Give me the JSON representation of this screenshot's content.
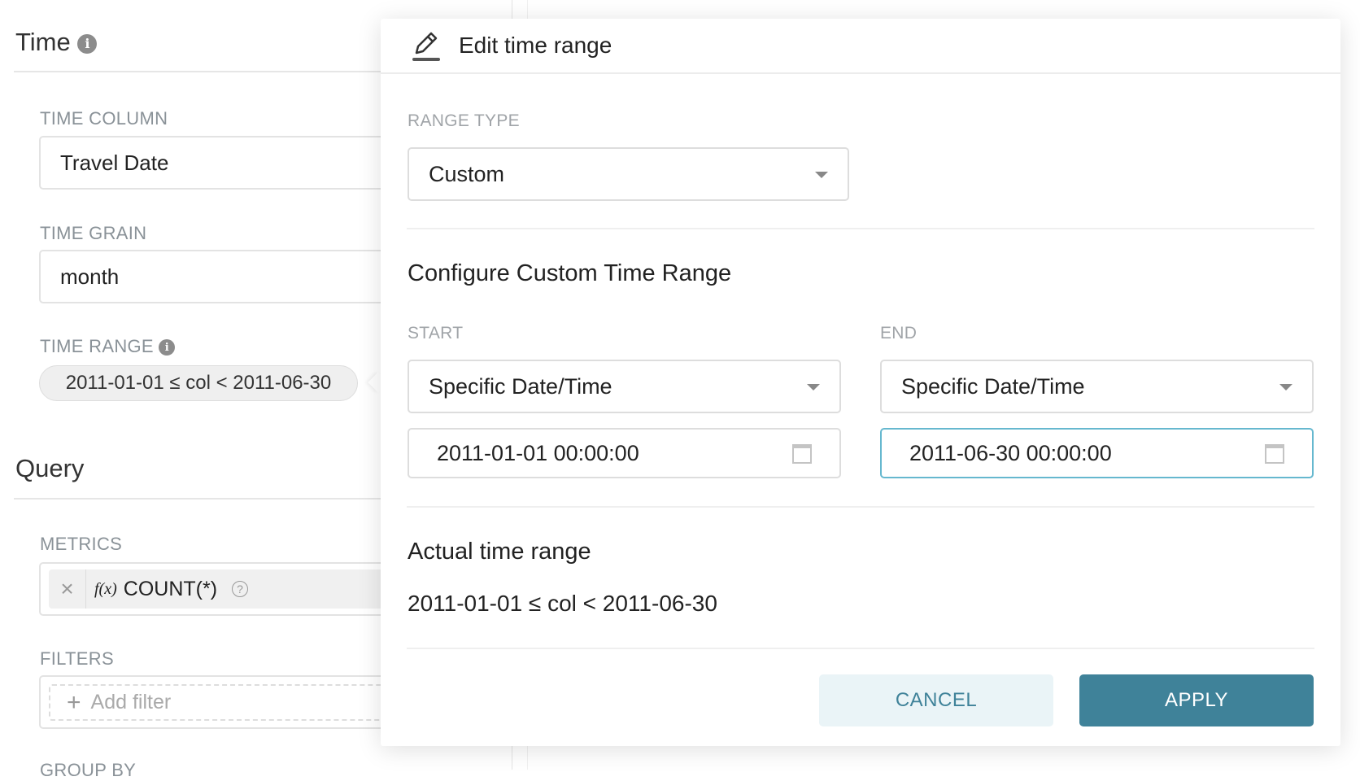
{
  "left_panel": {
    "time_section": {
      "title": "Time",
      "info_icon": "info-icon"
    },
    "time_column": {
      "label": "TIME COLUMN",
      "value": "Travel Date"
    },
    "time_grain": {
      "label": "TIME GRAIN",
      "value": "month"
    },
    "time_range": {
      "label": "TIME RANGE",
      "value": "2011-01-01 ≤ col < 2011-06-30"
    },
    "query_section": {
      "title": "Query"
    },
    "metrics": {
      "label": "METRICS",
      "fx": "f(x)",
      "value": "COUNT(*)",
      "remove": "×",
      "help": "?"
    },
    "filters": {
      "label": "FILTERS",
      "add_label": "Add filter",
      "plus": "+"
    },
    "group_by": {
      "label": "GROUP BY"
    }
  },
  "dialog": {
    "title": "Edit time range",
    "icon": "edit-pencil-icon",
    "range_type": {
      "label": "RANGE TYPE",
      "value": "Custom"
    },
    "configure_heading": "Configure Custom Time Range",
    "start": {
      "label": "START",
      "mode": "Specific Date/Time",
      "value": "2011-01-01 00:00:00"
    },
    "end": {
      "label": "END",
      "mode": "Specific Date/Time",
      "value": "2011-06-30 00:00:00"
    },
    "actual_heading": "Actual time range",
    "actual_value": "2011-01-01 ≤ col < 2011-06-30",
    "cancel_label": "CANCEL",
    "apply_label": "APPLY"
  },
  "colors": {
    "primary": "#3f8299",
    "primary_light": "#eaf4f7",
    "focus_border": "#66b8cf"
  }
}
